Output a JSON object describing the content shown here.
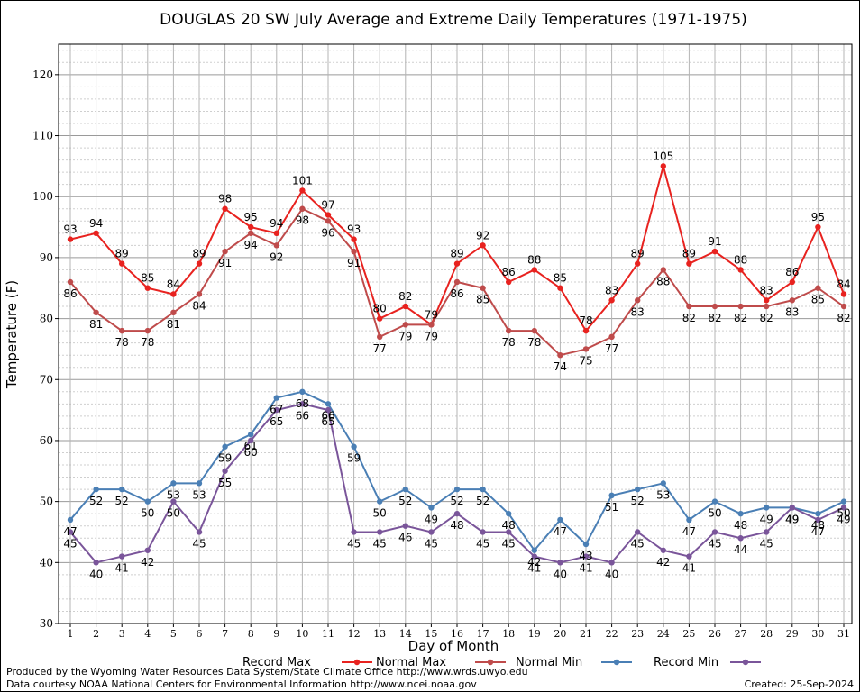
{
  "chart_data": {
    "type": "line",
    "title": "DOUGLAS 20 SW July Average and Extreme Daily Temperatures (1971-1975)",
    "xlabel": "Day of Month",
    "ylabel": "Temperature (F)",
    "ylim": [
      30,
      125
    ],
    "yticks": [
      30,
      40,
      50,
      60,
      70,
      80,
      90,
      100,
      110,
      120
    ],
    "grid": true,
    "legend_placement": "bottom",
    "x": [
      1,
      2,
      3,
      4,
      5,
      6,
      7,
      8,
      9,
      10,
      11,
      12,
      13,
      14,
      15,
      16,
      17,
      18,
      19,
      20,
      21,
      22,
      23,
      24,
      25,
      26,
      27,
      28,
      29,
      30,
      31
    ],
    "series": [
      {
        "name": "Record Max",
        "color": "#e8221f",
        "values": [
          93,
          94,
          89,
          85,
          84,
          89,
          98,
          95,
          94,
          101,
          97,
          93,
          80,
          82,
          79,
          89,
          92,
          86,
          88,
          85,
          78,
          83,
          89,
          105,
          89,
          91,
          88,
          83,
          86,
          95,
          84
        ]
      },
      {
        "name": "Normal Max",
        "color": "#bf4b4b",
        "values": [
          86,
          81,
          78,
          78,
          81,
          84,
          91,
          94,
          92,
          98,
          96,
          91,
          77,
          79,
          79,
          86,
          85,
          78,
          78,
          74,
          75,
          77,
          83,
          88,
          82,
          82,
          82,
          82,
          83,
          85,
          82
        ]
      },
      {
        "name": "Normal Min",
        "color": "#4a7fb5",
        "values": [
          47,
          52,
          52,
          50,
          53,
          53,
          59,
          61,
          67,
          68,
          66,
          59,
          50,
          52,
          49,
          52,
          52,
          48,
          42,
          47,
          43,
          51,
          52,
          53,
          47,
          50,
          48,
          49,
          49,
          48,
          50
        ]
      },
      {
        "name": "Record Min",
        "color": "#7a559a",
        "values": [
          45,
          40,
          41,
          42,
          50,
          45,
          55,
          60,
          65,
          66,
          65,
          45,
          45,
          46,
          45,
          48,
          45,
          45,
          41,
          40,
          41,
          40,
          45,
          42,
          41,
          45,
          44,
          45,
          49,
          47,
          49
        ]
      }
    ]
  },
  "footer": {
    "line1": "Produced by the Wyoming Water Resources Data System/State Climate Office http://www.wrds.uwyo.edu",
    "line2": "Data courtesy NOAA National Centers for Environmental Information http://www.ncei.noaa.gov",
    "created": "Created:  25-Sep-2024"
  }
}
